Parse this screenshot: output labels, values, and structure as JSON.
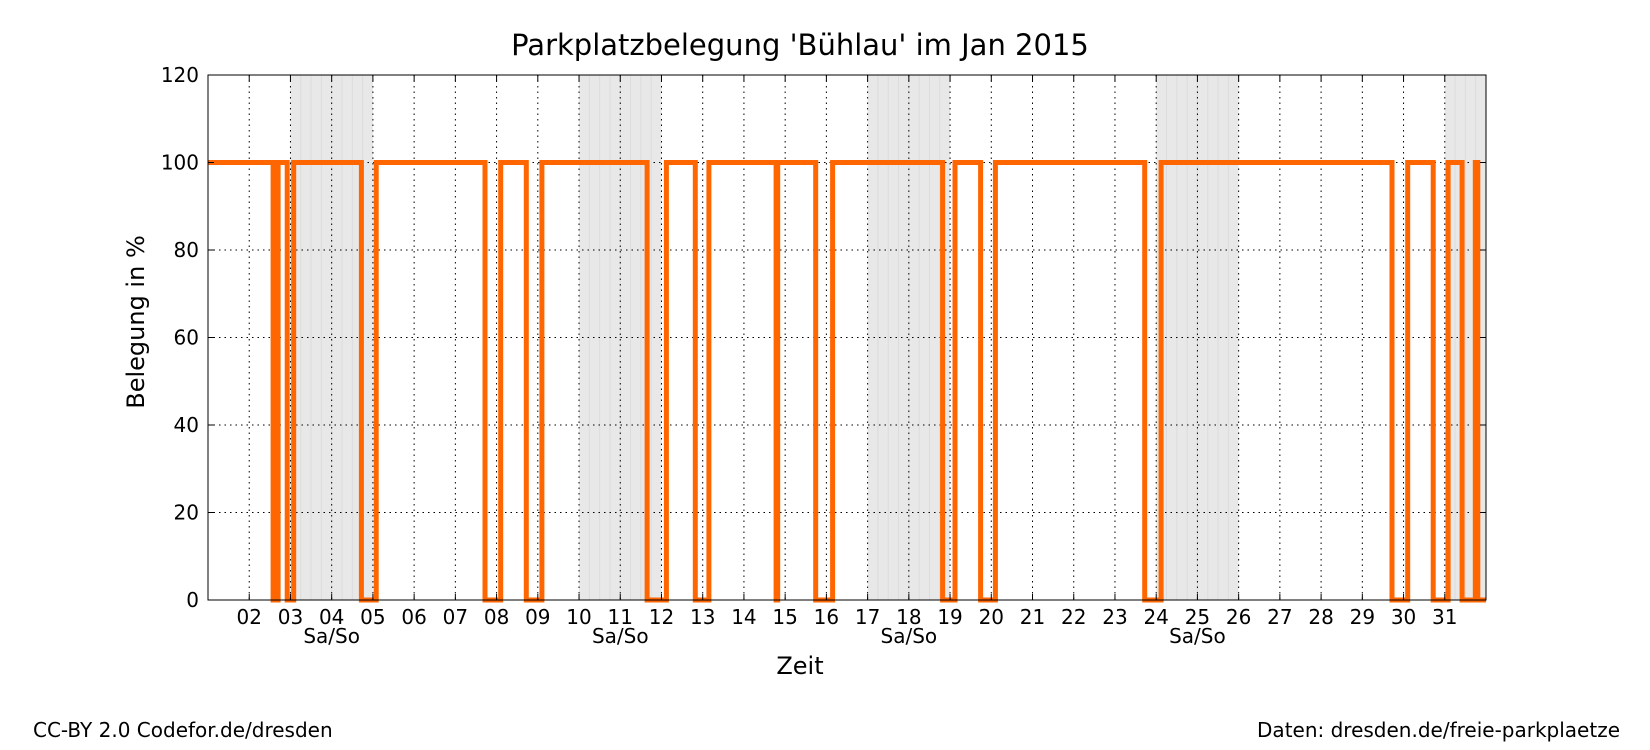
{
  "footer": {
    "license": "CC-BY 2.0 Codefor.de/dresden",
    "source": "Daten: dresden.de/freie-parkplaetze"
  },
  "colors": {
    "series": "#ff6600",
    "weekend_band": "#e8e8e8",
    "grid": "#000000"
  },
  "chart_data": {
    "type": "line",
    "title": "Parkplatzbelegung 'Bühlau' im Jan 2015",
    "xlabel": "Zeit",
    "ylabel": "Belegung in %",
    "xlim": [
      1,
      32
    ],
    "ylim": [
      0,
      120
    ],
    "x_unit": "day of Jan 2015",
    "yticks": [
      0,
      20,
      40,
      60,
      80,
      100,
      120
    ],
    "xticks": [
      {
        "day": 2,
        "label": "02"
      },
      {
        "day": 3,
        "label": "03"
      },
      {
        "day": 4,
        "label": "04"
      },
      {
        "day": 5,
        "label": "05"
      },
      {
        "day": 6,
        "label": "06"
      },
      {
        "day": 7,
        "label": "07"
      },
      {
        "day": 8,
        "label": "08"
      },
      {
        "day": 9,
        "label": "09"
      },
      {
        "day": 10,
        "label": "10"
      },
      {
        "day": 11,
        "label": "11"
      },
      {
        "day": 12,
        "label": "12"
      },
      {
        "day": 13,
        "label": "13"
      },
      {
        "day": 14,
        "label": "14"
      },
      {
        "day": 15,
        "label": "15"
      },
      {
        "day": 16,
        "label": "16"
      },
      {
        "day": 17,
        "label": "17"
      },
      {
        "day": 18,
        "label": "18"
      },
      {
        "day": 19,
        "label": "19"
      },
      {
        "day": 20,
        "label": "20"
      },
      {
        "day": 21,
        "label": "21"
      },
      {
        "day": 22,
        "label": "22"
      },
      {
        "day": 23,
        "label": "23"
      },
      {
        "day": 24,
        "label": "24"
      },
      {
        "day": 25,
        "label": "25"
      },
      {
        "day": 26,
        "label": "26"
      },
      {
        "day": 27,
        "label": "27"
      },
      {
        "day": 28,
        "label": "28"
      },
      {
        "day": 29,
        "label": "29"
      },
      {
        "day": 30,
        "label": "30"
      },
      {
        "day": 31,
        "label": "31"
      }
    ],
    "weekend_bands": [
      {
        "start": 3,
        "end": 5,
        "label": "Sa/So"
      },
      {
        "start": 10,
        "end": 12,
        "label": "Sa/So"
      },
      {
        "start": 17,
        "end": 19,
        "label": "Sa/So"
      },
      {
        "start": 24,
        "end": 26,
        "label": "Sa/So"
      },
      {
        "start": 31,
        "end": 32,
        "label": ""
      }
    ],
    "grid": true,
    "series": [
      {
        "points": [
          [
            1.0,
            100
          ],
          [
            2.58,
            100
          ],
          [
            2.58,
            0
          ],
          [
            2.62,
            0
          ],
          [
            2.62,
            100
          ],
          [
            2.66,
            100
          ],
          [
            2.66,
            0
          ],
          [
            2.7,
            0
          ],
          [
            2.7,
            100
          ],
          [
            2.92,
            100
          ],
          [
            2.92,
            0
          ],
          [
            3.08,
            0
          ],
          [
            3.08,
            100
          ],
          [
            4.72,
            100
          ],
          [
            4.72,
            0
          ],
          [
            5.08,
            0
          ],
          [
            5.08,
            100
          ],
          [
            7.72,
            100
          ],
          [
            7.72,
            0
          ],
          [
            8.1,
            0
          ],
          [
            8.1,
            100
          ],
          [
            8.72,
            100
          ],
          [
            8.72,
            0
          ],
          [
            9.1,
            0
          ],
          [
            9.1,
            100
          ],
          [
            11.65,
            100
          ],
          [
            11.65,
            0
          ],
          [
            12.12,
            0
          ],
          [
            12.12,
            100
          ],
          [
            12.82,
            100
          ],
          [
            12.82,
            0
          ],
          [
            13.15,
            0
          ],
          [
            13.15,
            100
          ],
          [
            14.78,
            100
          ],
          [
            14.78,
            0
          ],
          [
            14.82,
            0
          ],
          [
            14.82,
            100
          ],
          [
            15.74,
            100
          ],
          [
            15.74,
            0
          ],
          [
            16.15,
            0
          ],
          [
            16.15,
            100
          ],
          [
            18.82,
            100
          ],
          [
            18.82,
            0
          ],
          [
            19.12,
            0
          ],
          [
            19.12,
            100
          ],
          [
            19.74,
            100
          ],
          [
            19.74,
            0
          ],
          [
            20.1,
            0
          ],
          [
            20.1,
            100
          ],
          [
            23.72,
            100
          ],
          [
            23.72,
            0
          ],
          [
            24.12,
            0
          ],
          [
            24.12,
            100
          ],
          [
            29.72,
            100
          ],
          [
            29.72,
            0
          ],
          [
            30.1,
            0
          ],
          [
            30.1,
            100
          ],
          [
            30.72,
            100
          ],
          [
            30.72,
            0
          ],
          [
            31.08,
            0
          ],
          [
            31.08,
            100
          ],
          [
            31.42,
            100
          ],
          [
            31.42,
            0
          ],
          [
            31.74,
            0
          ],
          [
            31.74,
            100
          ],
          [
            31.8,
            100
          ],
          [
            31.8,
            0
          ],
          [
            32.0,
            0
          ]
        ]
      }
    ]
  }
}
